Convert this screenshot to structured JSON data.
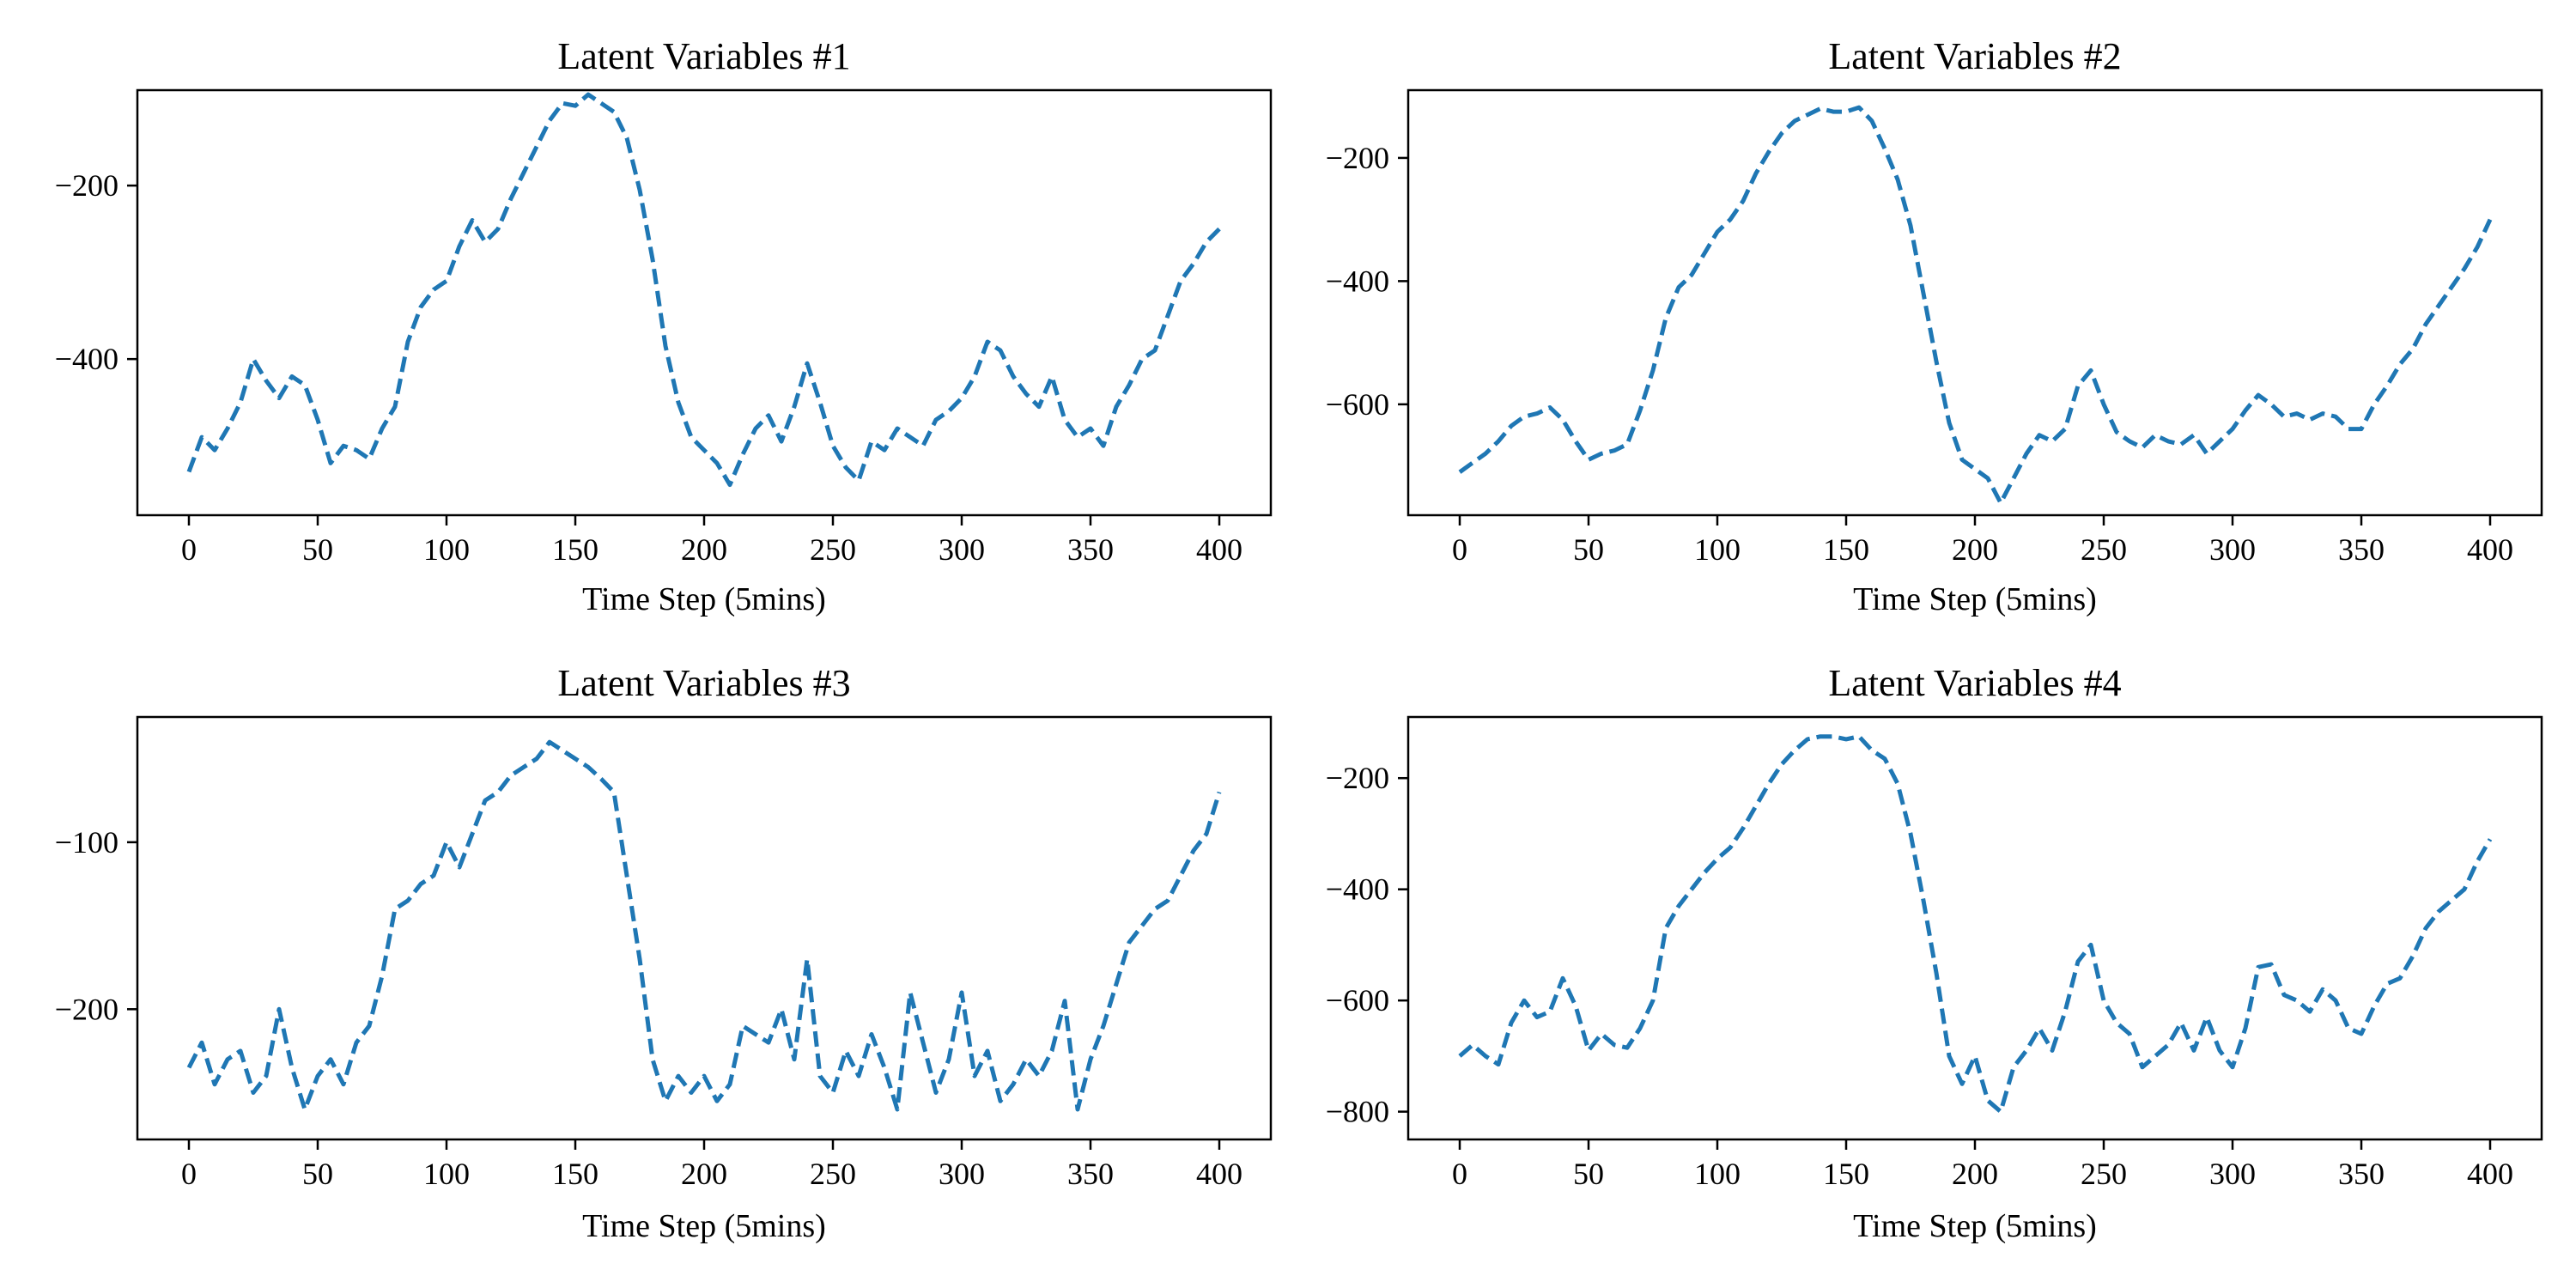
{
  "figure": {
    "line_color": "#1f77b4",
    "line_style": "dashed",
    "background": "#ffffff"
  },
  "chart_data": [
    {
      "type": "line",
      "title": "Latent Variables #1",
      "xlabel": "Time Step (5mins)",
      "ylabel": "",
      "xlim": [
        -20,
        420
      ],
      "ylim": [
        -580,
        -90
      ],
      "xticks": [
        0,
        50,
        100,
        150,
        200,
        250,
        300,
        350,
        400
      ],
      "yticks": [
        -400,
        -200
      ],
      "grid": false,
      "series": [
        {
          "color": "#1f77b4",
          "linestyle": "dashed",
          "x": [
            0,
            5,
            10,
            15,
            20,
            25,
            30,
            35,
            40,
            45,
            50,
            55,
            60,
            65,
            70,
            75,
            80,
            85,
            90,
            95,
            100,
            105,
            110,
            115,
            120,
            125,
            130,
            135,
            140,
            145,
            150,
            155,
            160,
            165,
            170,
            175,
            180,
            185,
            190,
            195,
            200,
            205,
            210,
            215,
            220,
            225,
            230,
            235,
            240,
            245,
            250,
            255,
            260,
            265,
            270,
            275,
            280,
            285,
            290,
            295,
            300,
            305,
            310,
            315,
            320,
            325,
            330,
            335,
            340,
            345,
            350,
            355,
            360,
            365,
            370,
            375,
            380,
            385,
            390,
            395,
            400
          ],
          "y": [
            -530,
            -490,
            -505,
            -480,
            -450,
            -400,
            -425,
            -445,
            -420,
            -430,
            -470,
            -520,
            -500,
            -505,
            -515,
            -480,
            -455,
            -380,
            -340,
            -320,
            -310,
            -270,
            -240,
            -265,
            -250,
            -215,
            -185,
            -155,
            -125,
            -105,
            -108,
            -95,
            -105,
            -115,
            -145,
            -205,
            -285,
            -385,
            -450,
            -490,
            -505,
            -520,
            -545,
            -510,
            -480,
            -465,
            -495,
            -455,
            -405,
            -450,
            -500,
            -525,
            -540,
            -495,
            -505,
            -480,
            -490,
            -500,
            -470,
            -460,
            -445,
            -420,
            -380,
            -390,
            -420,
            -440,
            -455,
            -420,
            -470,
            -490,
            -480,
            -500,
            -455,
            -430,
            -400,
            -390,
            -350,
            -310,
            -290,
            -265,
            -250
          ]
        }
      ]
    },
    {
      "type": "line",
      "title": "Latent Variables #2",
      "xlabel": "Time Step (5mins)",
      "ylabel": "",
      "xlim": [
        -20,
        420
      ],
      "ylim": [
        -780,
        -90
      ],
      "xticks": [
        0,
        50,
        100,
        150,
        200,
        250,
        300,
        350,
        400
      ],
      "yticks": [
        -600,
        -400,
        -200
      ],
      "grid": false,
      "series": [
        {
          "color": "#1f77b4",
          "linestyle": "dashed",
          "x": [
            0,
            5,
            10,
            15,
            20,
            25,
            30,
            35,
            40,
            45,
            50,
            55,
            60,
            65,
            70,
            75,
            80,
            85,
            90,
            95,
            100,
            105,
            110,
            115,
            120,
            125,
            130,
            135,
            140,
            145,
            150,
            155,
            160,
            165,
            170,
            175,
            180,
            185,
            190,
            195,
            200,
            205,
            210,
            215,
            220,
            225,
            230,
            235,
            240,
            245,
            250,
            255,
            260,
            265,
            270,
            275,
            280,
            285,
            290,
            295,
            300,
            305,
            310,
            315,
            320,
            325,
            330,
            335,
            340,
            345,
            350,
            355,
            360,
            365,
            370,
            375,
            380,
            385,
            390,
            395,
            400
          ],
          "y": [
            -710,
            -695,
            -680,
            -660,
            -635,
            -620,
            -615,
            -605,
            -625,
            -660,
            -690,
            -680,
            -675,
            -665,
            -610,
            -545,
            -460,
            -410,
            -390,
            -355,
            -320,
            -300,
            -270,
            -225,
            -190,
            -160,
            -140,
            -130,
            -120,
            -125,
            -125,
            -118,
            -140,
            -185,
            -235,
            -310,
            -420,
            -530,
            -630,
            -690,
            -705,
            -720,
            -760,
            -720,
            -680,
            -650,
            -660,
            -640,
            -570,
            -545,
            -600,
            -645,
            -660,
            -670,
            -650,
            -660,
            -665,
            -650,
            -680,
            -660,
            -640,
            -610,
            -585,
            -600,
            -620,
            -615,
            -625,
            -615,
            -620,
            -640,
            -640,
            -600,
            -570,
            -535,
            -510,
            -470,
            -440,
            -410,
            -380,
            -345,
            -300
          ]
        }
      ]
    },
    {
      "type": "line",
      "title": "Latent Variables #3",
      "xlabel": "Time Step (5mins)",
      "ylabel": "",
      "xlim": [
        -20,
        420
      ],
      "ylim": [
        -278,
        -25
      ],
      "xticks": [
        0,
        50,
        100,
        150,
        200,
        250,
        300,
        350,
        400
      ],
      "yticks": [
        -200,
        -100
      ],
      "grid": false,
      "series": [
        {
          "color": "#1f77b4",
          "linestyle": "dashed",
          "x": [
            0,
            5,
            10,
            15,
            20,
            25,
            30,
            35,
            40,
            45,
            50,
            55,
            60,
            65,
            70,
            75,
            80,
            85,
            90,
            95,
            100,
            105,
            110,
            115,
            120,
            125,
            130,
            135,
            140,
            145,
            150,
            155,
            160,
            165,
            170,
            175,
            180,
            185,
            190,
            195,
            200,
            205,
            210,
            215,
            220,
            225,
            230,
            235,
            240,
            245,
            250,
            255,
            260,
            265,
            270,
            275,
            280,
            285,
            290,
            295,
            300,
            305,
            310,
            315,
            320,
            325,
            330,
            335,
            340,
            345,
            350,
            355,
            360,
            365,
            370,
            375,
            380,
            385,
            390,
            395,
            400
          ],
          "y": [
            -235,
            -220,
            -245,
            -230,
            -225,
            -250,
            -240,
            -200,
            -235,
            -260,
            -240,
            -230,
            -245,
            -220,
            -210,
            -180,
            -140,
            -135,
            -125,
            -120,
            -100,
            -115,
            -95,
            -75,
            -70,
            -60,
            -55,
            -50,
            -40,
            -45,
            -50,
            -55,
            -62,
            -70,
            -120,
            -170,
            -230,
            -255,
            -240,
            -250,
            -240,
            -255,
            -245,
            -210,
            -215,
            -220,
            -200,
            -230,
            -170,
            -240,
            -250,
            -225,
            -240,
            -215,
            -235,
            -260,
            -190,
            -220,
            -250,
            -230,
            -190,
            -240,
            -225,
            -255,
            -245,
            -230,
            -240,
            -225,
            -195,
            -260,
            -230,
            -210,
            -185,
            -160,
            -150,
            -140,
            -135,
            -120,
            -105,
            -95,
            -70
          ]
        }
      ]
    },
    {
      "type": "line",
      "title": "Latent Variables #4",
      "xlabel": "Time Step (5mins)",
      "ylabel": "",
      "xlim": [
        -20,
        420
      ],
      "ylim": [
        -850,
        -90
      ],
      "xticks": [
        0,
        50,
        100,
        150,
        200,
        250,
        300,
        350,
        400
      ],
      "yticks": [
        -800,
        -600,
        -400,
        -200
      ],
      "grid": false,
      "series": [
        {
          "color": "#1f77b4",
          "linestyle": "dashed",
          "x": [
            0,
            5,
            10,
            15,
            20,
            25,
            30,
            35,
            40,
            45,
            50,
            55,
            60,
            65,
            70,
            75,
            80,
            85,
            90,
            95,
            100,
            105,
            110,
            115,
            120,
            125,
            130,
            135,
            140,
            145,
            150,
            155,
            160,
            165,
            170,
            175,
            180,
            185,
            190,
            195,
            200,
            205,
            210,
            215,
            220,
            225,
            230,
            235,
            240,
            245,
            250,
            255,
            260,
            265,
            270,
            275,
            280,
            285,
            290,
            295,
            300,
            305,
            310,
            315,
            320,
            325,
            330,
            335,
            340,
            345,
            350,
            355,
            360,
            365,
            370,
            375,
            380,
            385,
            390,
            395,
            400
          ],
          "y": [
            -700,
            -680,
            -700,
            -715,
            -640,
            -600,
            -630,
            -620,
            -560,
            -610,
            -690,
            -660,
            -680,
            -685,
            -650,
            -600,
            -470,
            -430,
            -400,
            -370,
            -345,
            -325,
            -290,
            -250,
            -210,
            -175,
            -150,
            -130,
            -125,
            -125,
            -130,
            -125,
            -150,
            -165,
            -210,
            -300,
            -420,
            -550,
            -700,
            -750,
            -700,
            -780,
            -800,
            -720,
            -690,
            -650,
            -690,
            -620,
            -530,
            -500,
            -600,
            -640,
            -660,
            -720,
            -700,
            -680,
            -640,
            -690,
            -630,
            -690,
            -720,
            -650,
            -540,
            -535,
            -590,
            -600,
            -620,
            -580,
            -600,
            -650,
            -660,
            -610,
            -570,
            -560,
            -520,
            -470,
            -440,
            -420,
            -400,
            -350,
            -310
          ]
        }
      ]
    }
  ]
}
